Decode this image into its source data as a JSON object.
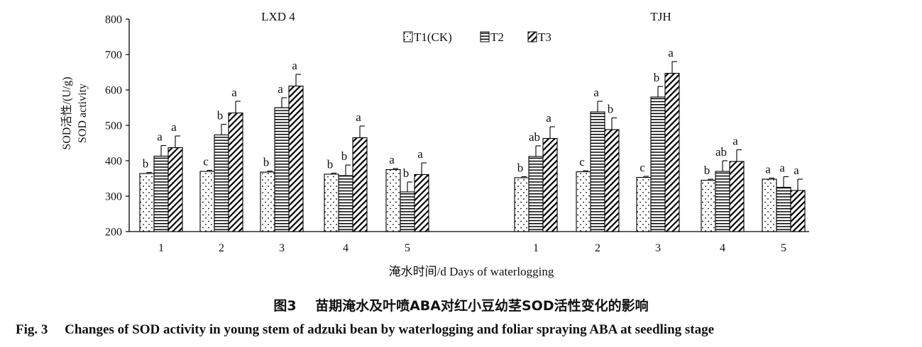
{
  "chart_data": {
    "type": "bar",
    "groups": [
      "LXD 4",
      "TJH"
    ],
    "categories": [
      "1",
      "2",
      "3",
      "4",
      "5"
    ],
    "series_names": [
      "T1(CK)",
      "T2",
      "T3"
    ],
    "ylim": [
      200,
      800
    ],
    "yticks": [
      "200",
      "300",
      "400",
      "500",
      "600",
      "700",
      "800"
    ],
    "ylabel_cn": "SOD活性/(U/g)",
    "ylabel_en": "SOD activity",
    "xlabel": "淹水时间/d Days of waterlogging",
    "data": {
      "LXD 4": {
        "T1(CK)": {
          "values": [
            364,
            370,
            368,
            362,
            375
          ],
          "errors": [
            3,
            3,
            3,
            3,
            3
          ],
          "letters": [
            "b",
            "c",
            "b",
            "b",
            "a"
          ]
        },
        "T2": {
          "values": [
            413,
            473,
            550,
            358,
            312
          ],
          "errors": [
            30,
            30,
            28,
            30,
            28
          ],
          "letters": [
            "a",
            "b",
            "a",
            "b",
            "b"
          ]
        },
        "T3": {
          "values": [
            437,
            535,
            611,
            465,
            361
          ],
          "errors": [
            33,
            33,
            33,
            33,
            33
          ],
          "letters": [
            "a",
            "a",
            "a",
            "a",
            "a"
          ]
        }
      },
      "TJH": {
        "T1(CK)": {
          "values": [
            352,
            369,
            353,
            345,
            348
          ],
          "errors": [
            3,
            3,
            3,
            3,
            3
          ],
          "letters": [
            "b",
            "c",
            "c",
            "b",
            "a"
          ]
        },
        "T2": {
          "values": [
            412,
            538,
            580,
            370,
            325
          ],
          "errors": [
            30,
            30,
            30,
            30,
            30
          ],
          "letters": [
            "ab",
            "a",
            "b",
            "ab",
            "a"
          ]
        },
        "T3": {
          "values": [
            463,
            488,
            647,
            398,
            316
          ],
          "errors": [
            33,
            33,
            33,
            33,
            32
          ],
          "letters": [
            "a",
            "b",
            "a",
            "a",
            "a"
          ]
        }
      }
    },
    "legend_position": "top-center",
    "grid": false
  },
  "captions": {
    "cn_label": "图3",
    "cn_text": "苗期淹水及叶喷ABA对红小豆幼茎SOD活性变化的影响",
    "en_label": "Fig. 3",
    "en_text": "Changes of SOD activity in young stem of adzuki bean by waterlogging and foliar spraying ABA at seedling stage"
  }
}
